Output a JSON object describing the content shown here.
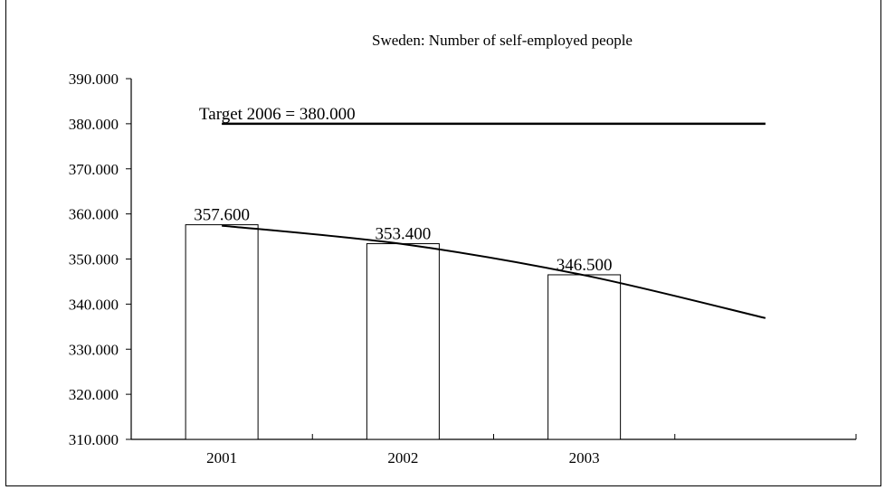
{
  "chart_data": {
    "type": "bar",
    "title": "Sweden: Number of self-employed people",
    "categories": [
      "2001",
      "2002",
      "2003"
    ],
    "values": [
      357600,
      353400,
      346500
    ],
    "data_labels": [
      "357.600",
      "353.400",
      "346.500"
    ],
    "ylim": [
      310000,
      390000
    ],
    "y_ticks": [
      310000,
      320000,
      330000,
      340000,
      350000,
      360000,
      370000,
      380000,
      390000
    ],
    "y_tick_labels": [
      "310.000",
      "320.000",
      "330.000",
      "340.000",
      "350.000",
      "360.000",
      "370.000",
      "380.000",
      "390.000"
    ],
    "x_slots": 4,
    "target": {
      "value": 380000,
      "label": "Target 2006 = 380.000"
    },
    "trend": {
      "type": "polynomial",
      "x": [
        1,
        2,
        3,
        4
      ],
      "values": [
        357400,
        353300,
        346400,
        336900
      ]
    },
    "xlabel": "",
    "ylabel": "",
    "grid": false,
    "legend": "none"
  }
}
